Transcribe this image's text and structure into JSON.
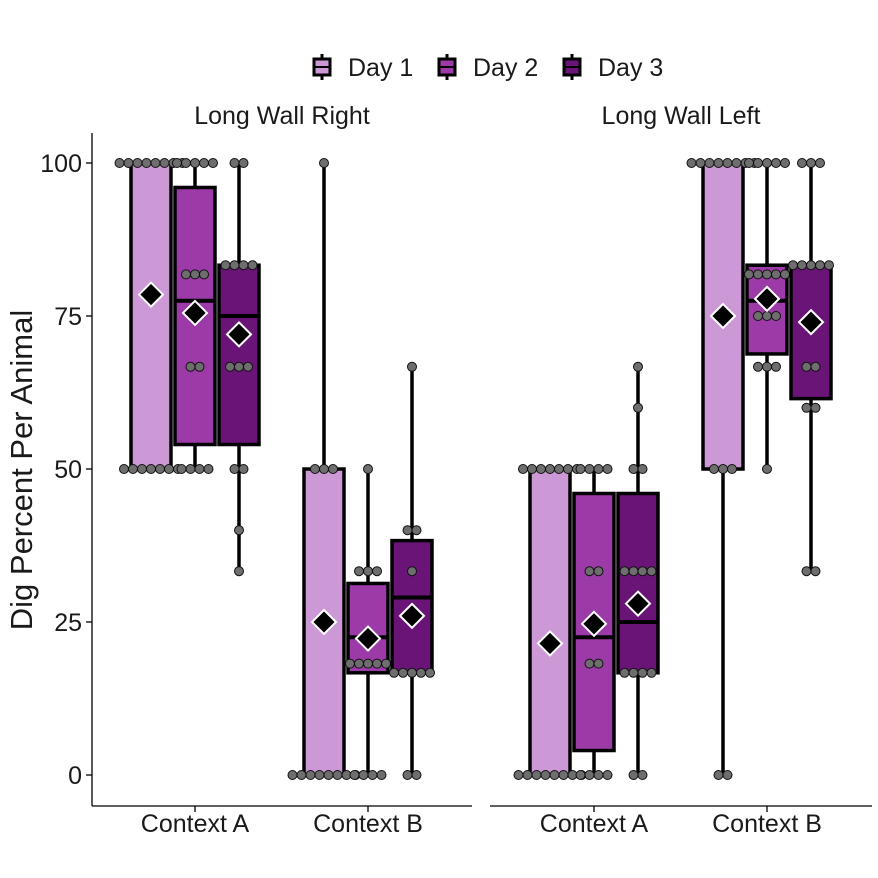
{
  "chart_data": {
    "type": "boxplot",
    "ylabel": "Dig Percent Per Animal",
    "ylim": [
      0,
      100
    ],
    "yticks": [
      0,
      25,
      50,
      75,
      100
    ],
    "categories": [
      "Context A",
      "Context B"
    ],
    "legend": {
      "position": "top",
      "entries": [
        {
          "name": "Day 1",
          "color": "#cc99d6"
        },
        {
          "name": "Day 2",
          "color": "#9c3aa8"
        },
        {
          "name": "Day 3",
          "color": "#6a1478"
        }
      ]
    },
    "panels": [
      {
        "title": "Long Wall Right",
        "groups": [
          {
            "category": "Context A",
            "boxes": [
              {
                "day": "Day 1",
                "q1": 50,
                "median": 100,
                "q3": 100,
                "lower": 50,
                "upper": 100,
                "mean": 78.5,
                "points": [
                  [
                    50,
                    7
                  ],
                  [
                    100,
                    8
                  ]
                ]
              },
              {
                "day": "Day 2",
                "q1": 54,
                "median": 77.5,
                "q3": 96,
                "lower": 50,
                "upper": 100,
                "mean": 75.5,
                "points": [
                  [
                    50,
                    4
                  ],
                  [
                    66.7,
                    2
                  ],
                  [
                    81.8,
                    3
                  ],
                  [
                    100,
                    5
                  ]
                ]
              },
              {
                "day": "Day 3",
                "q1": 54,
                "median": 75,
                "q3": 83.3,
                "lower": 33.3,
                "upper": 100,
                "mean": 72,
                "points": [
                  [
                    33.3,
                    1
                  ],
                  [
                    40,
                    1
                  ],
                  [
                    50,
                    2
                  ],
                  [
                    66.7,
                    3
                  ],
                  [
                    83.3,
                    4
                  ],
                  [
                    100,
                    2
                  ]
                ]
              }
            ]
          },
          {
            "category": "Context B",
            "boxes": [
              {
                "day": "Day 1",
                "q1": 0,
                "median": 0,
                "q3": 50,
                "lower": 0,
                "upper": 100,
                "mean": 25,
                "points": [
                  [
                    0,
                    8
                  ],
                  [
                    50,
                    3
                  ],
                  [
                    100,
                    1
                  ]
                ]
              },
              {
                "day": "Day 2",
                "q1": 16.7,
                "median": 22.5,
                "q3": 31.3,
                "lower": 0,
                "upper": 50,
                "mean": 22.3,
                "points": [
                  [
                    0,
                    4
                  ],
                  [
                    18.2,
                    5
                  ],
                  [
                    33.3,
                    3
                  ],
                  [
                    50,
                    1
                  ]
                ]
              },
              {
                "day": "Day 3",
                "q1": 16.7,
                "median": 29,
                "q3": 38.3,
                "lower": 0,
                "upper": 66.7,
                "mean": 26,
                "points": [
                  [
                    0,
                    2
                  ],
                  [
                    16.7,
                    5
                  ],
                  [
                    33.3,
                    1
                  ],
                  [
                    40,
                    2
                  ],
                  [
                    66.7,
                    1
                  ]
                ]
              }
            ]
          }
        ]
      },
      {
        "title": "Long Wall Left",
        "groups": [
          {
            "category": "Context A",
            "boxes": [
              {
                "day": "Day 1",
                "q1": 0,
                "median": 0,
                "q3": 50,
                "lower": 0,
                "upper": 50,
                "mean": 21.5,
                "points": [
                  [
                    0,
                    8
                  ],
                  [
                    50,
                    7
                  ]
                ]
              },
              {
                "day": "Day 2",
                "q1": 4,
                "median": 22.5,
                "q3": 46,
                "lower": 0,
                "upper": 50,
                "mean": 24.7,
                "points": [
                  [
                    0,
                    4
                  ],
                  [
                    18.2,
                    2
                  ],
                  [
                    33.3,
                    2
                  ],
                  [
                    50,
                    4
                  ]
                ]
              },
              {
                "day": "Day 3",
                "q1": 16.7,
                "median": 25,
                "q3": 46,
                "lower": 0,
                "upper": 66.7,
                "mean": 28,
                "points": [
                  [
                    0,
                    2
                  ],
                  [
                    16.7,
                    4
                  ],
                  [
                    33.3,
                    4
                  ],
                  [
                    50,
                    2
                  ],
                  [
                    60,
                    1
                  ],
                  [
                    66.7,
                    1
                  ]
                ]
              }
            ]
          },
          {
            "category": "Context B",
            "boxes": [
              {
                "day": "Day 1",
                "q1": 50,
                "median": 100,
                "q3": 100,
                "lower": 0,
                "upper": 100,
                "mean": 75,
                "points": [
                  [
                    0,
                    2
                  ],
                  [
                    50,
                    3
                  ],
                  [
                    100,
                    8
                  ]
                ]
              },
              {
                "day": "Day 2",
                "q1": 68.8,
                "median": 77.5,
                "q3": 83.3,
                "lower": 50,
                "upper": 100,
                "mean": 77.8,
                "points": [
                  [
                    50,
                    1
                  ],
                  [
                    66.7,
                    3
                  ],
                  [
                    75,
                    3
                  ],
                  [
                    81.8,
                    5
                  ],
                  [
                    100,
                    5
                  ]
                ]
              },
              {
                "day": "Day 3",
                "q1": 61.5,
                "median": 83.3,
                "q3": 83.3,
                "lower": 33.3,
                "upper": 100,
                "mean": 74,
                "points": [
                  [
                    33.3,
                    2
                  ],
                  [
                    60,
                    2
                  ],
                  [
                    66.7,
                    2
                  ],
                  [
                    83.3,
                    5
                  ],
                  [
                    100,
                    3
                  ]
                ]
              }
            ]
          }
        ]
      }
    ]
  }
}
